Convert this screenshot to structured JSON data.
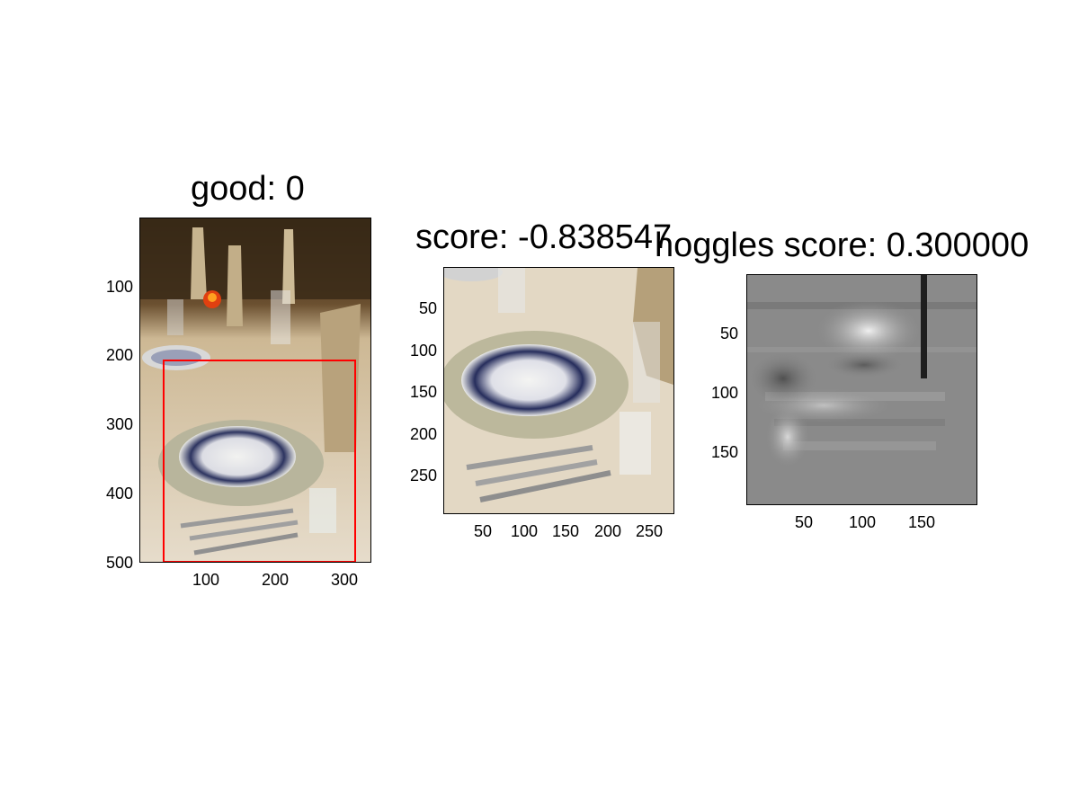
{
  "figure": {
    "panels": [
      {
        "title": "good: 0",
        "x_ticks": [
          "100",
          "200",
          "300"
        ],
        "y_ticks": [
          "100",
          "200",
          "300",
          "400",
          "500"
        ],
        "content": "photo of table setting with red bounding box"
      },
      {
        "title": "score: -0.838547",
        "x_ticks": [
          "50",
          "100",
          "150",
          "200",
          "250"
        ],
        "y_ticks": [
          "50",
          "100",
          "150",
          "200",
          "250"
        ],
        "content": "cropped photo of plate setting"
      },
      {
        "title": "hoggles score: 0.300000",
        "x_ticks": [
          "50",
          "100",
          "150"
        ],
        "y_ticks": [
          "50",
          "100",
          "150"
        ],
        "content": "grayscale HOG visualization"
      }
    ],
    "colors": {
      "bbox": "#ff0000",
      "table_cloth": "#d9c9a8",
      "background_dark": "#3a2a18",
      "grayscale_mid": "#8a8a8a"
    }
  }
}
